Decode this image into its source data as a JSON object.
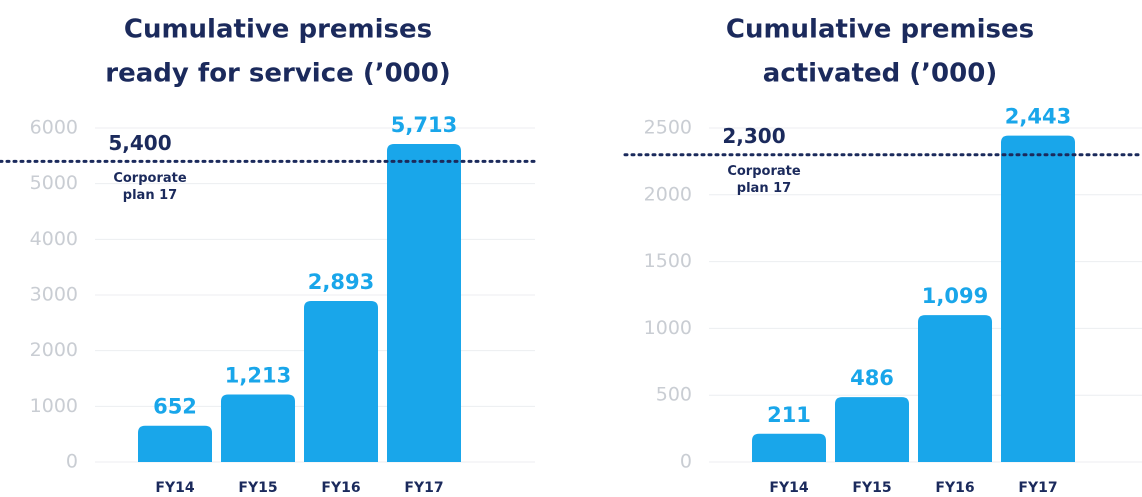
{
  "chart_data": [
    {
      "type": "bar",
      "title": [
        "Cumulative premises",
        "ready for service (’000)"
      ],
      "categories": [
        "FY14",
        "FY15",
        "FY16",
        "FY17"
      ],
      "values": [
        652,
        1213,
        2893,
        5713
      ],
      "value_labels": [
        "652",
        "1,213",
        "2,893",
        "5,713"
      ],
      "color": "#19a6ea",
      "ylim": [
        0,
        6000
      ],
      "yticks": [
        0,
        1000,
        2000,
        3000,
        4000,
        5000,
        6000
      ],
      "grid": true,
      "reference": {
        "value": 5400,
        "label": "5,400",
        "note": [
          "Corporate",
          "plan 17"
        ]
      }
    },
    {
      "type": "bar",
      "title": [
        "Cumulative premises",
        "activated (’000)"
      ],
      "categories": [
        "FY14",
        "FY15",
        "FY16",
        "FY17"
      ],
      "values": [
        211,
        486,
        1099,
        2443
      ],
      "value_labels": [
        "211",
        "486",
        "1,099",
        "2,443"
      ],
      "color": "#19a6ea",
      "ylim": [
        0,
        2500
      ],
      "yticks": [
        0,
        500,
        1000,
        1500,
        2000,
        2500
      ],
      "grid": true,
      "reference": {
        "value": 2300,
        "label": "2,300",
        "note": [
          "Corporate",
          "plan 17"
        ]
      }
    }
  ]
}
